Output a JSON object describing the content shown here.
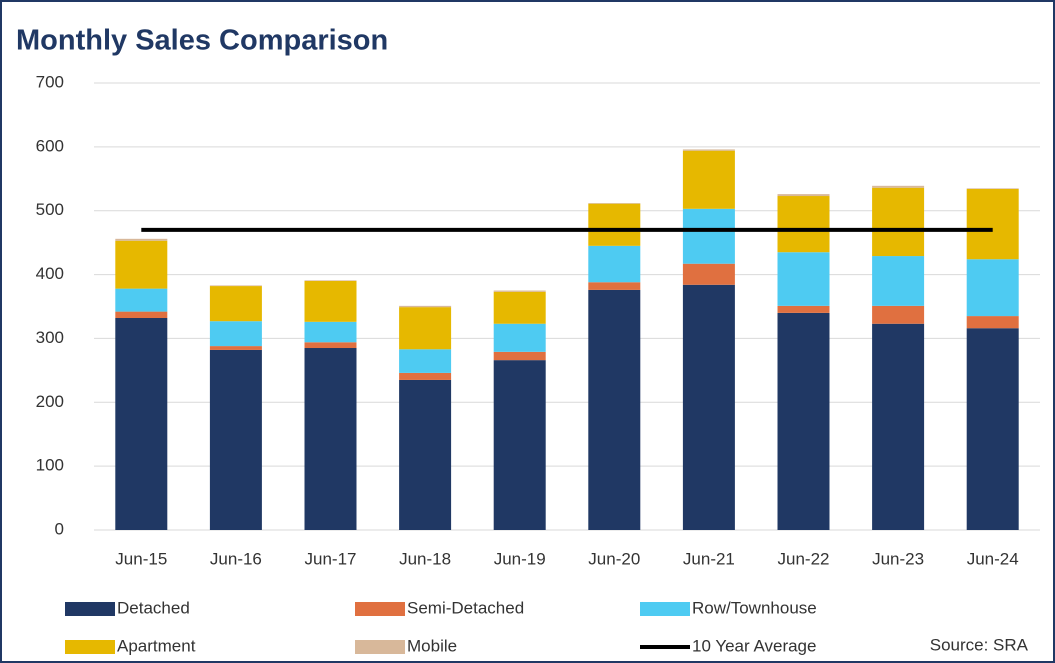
{
  "chart_data": {
    "type": "bar",
    "stacked": true,
    "title": "Monthly Sales Comparison",
    "source": "Source: SRA",
    "categories": [
      "Jun-15",
      "Jun-16",
      "Jun-17",
      "Jun-18",
      "Jun-19",
      "Jun-20",
      "Jun-21",
      "Jun-22",
      "Jun-23",
      "Jun-24"
    ],
    "series": [
      {
        "name": "Detached",
        "color": "#203864",
        "values": [
          332,
          282,
          285,
          235,
          266,
          376,
          384,
          340,
          323,
          316
        ]
      },
      {
        "name": "Semi-Detached",
        "color": "#e07040",
        "values": [
          10,
          6,
          9,
          11,
          13,
          12,
          33,
          11,
          28,
          19
        ]
      },
      {
        "name": "Row/Townhouse",
        "color": "#4ecbf2",
        "values": [
          36,
          39,
          32,
          37,
          44,
          57,
          86,
          84,
          78,
          89
        ]
      },
      {
        "name": "Apartment",
        "color": "#e6b800",
        "values": [
          75,
          55,
          64,
          66,
          50,
          66,
          91,
          88,
          107,
          110
        ]
      },
      {
        "name": "Mobile",
        "color": "#d8b89a",
        "values": [
          3,
          1,
          1,
          2,
          2,
          1,
          2,
          3,
          3,
          1
        ]
      },
      {
        "name": "10 Year Average",
        "color": "#000000",
        "type": "line",
        "values": [
          470,
          470,
          470,
          470,
          470,
          470,
          470,
          470,
          470,
          470
        ]
      }
    ],
    "ylim": [
      0,
      700
    ],
    "yticks": [
      0,
      100,
      200,
      300,
      400,
      500,
      600,
      700
    ],
    "grid": true
  }
}
